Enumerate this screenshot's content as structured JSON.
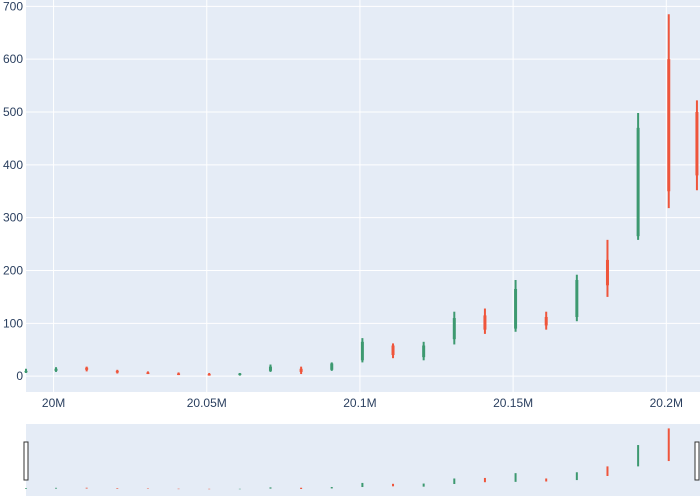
{
  "chart_data": {
    "type": "candlestick",
    "title": "",
    "xlabel": "",
    "ylabel": "",
    "xlim": [
      19991000,
      20211000
    ],
    "ylim": [
      -30,
      712
    ],
    "x_ticks": [
      {
        "value": 20000000,
        "label": "20M"
      },
      {
        "value": 20050000,
        "label": "20.05M"
      },
      {
        "value": 20100000,
        "label": "20.1M"
      },
      {
        "value": 20150000,
        "label": "20.15M"
      },
      {
        "value": 20200000,
        "label": "20.2M"
      }
    ],
    "y_ticks": [
      0,
      100,
      200,
      300,
      400,
      500,
      600,
      700
    ],
    "grid": true,
    "increasing_color": "#3d9970",
    "decreasing_color": "#ef553b",
    "plot_background": "#e5ecf6",
    "range_slider": true,
    "candles": [
      {
        "x": 19991000,
        "open": 8,
        "high": 14,
        "low": 6,
        "close": 10
      },
      {
        "x": 20000800,
        "open": 10,
        "high": 17,
        "low": 8,
        "close": 14
      },
      {
        "x": 20010800,
        "open": 16,
        "high": 18,
        "low": 9,
        "close": 12
      },
      {
        "x": 20020800,
        "open": 10,
        "high": 12,
        "low": 5,
        "close": 7
      },
      {
        "x": 20030800,
        "open": 7,
        "high": 9,
        "low": 4,
        "close": 5
      },
      {
        "x": 20040800,
        "open": 5,
        "high": 7,
        "low": 2,
        "close": 4
      },
      {
        "x": 20050800,
        "open": 4,
        "high": 6,
        "low": 1,
        "close": 3
      },
      {
        "x": 20060800,
        "open": 3,
        "high": 6,
        "low": 1,
        "close": 5
      },
      {
        "x": 20070800,
        "open": 10,
        "high": 22,
        "low": 8,
        "close": 18
      },
      {
        "x": 20080800,
        "open": 14,
        "high": 18,
        "low": 4,
        "close": 8
      },
      {
        "x": 20090800,
        "open": 12,
        "high": 26,
        "low": 10,
        "close": 24
      },
      {
        "x": 20100800,
        "open": 30,
        "high": 72,
        "low": 26,
        "close": 65
      },
      {
        "x": 20110800,
        "open": 58,
        "high": 62,
        "low": 34,
        "close": 40
      },
      {
        "x": 20120800,
        "open": 36,
        "high": 65,
        "low": 30,
        "close": 58
      },
      {
        "x": 20130800,
        "open": 70,
        "high": 122,
        "low": 60,
        "close": 110
      },
      {
        "x": 20140800,
        "open": 115,
        "high": 128,
        "low": 80,
        "close": 88
      },
      {
        "x": 20150800,
        "open": 90,
        "high": 182,
        "low": 84,
        "close": 165
      },
      {
        "x": 20160800,
        "open": 112,
        "high": 122,
        "low": 88,
        "close": 96
      },
      {
        "x": 20170800,
        "open": 112,
        "high": 192,
        "low": 104,
        "close": 182
      },
      {
        "x": 20180800,
        "open": 220,
        "high": 258,
        "low": 150,
        "close": 172
      },
      {
        "x": 20190800,
        "open": 265,
        "high": 498,
        "low": 258,
        "close": 470
      },
      {
        "x": 20200800,
        "open": 600,
        "high": 685,
        "low": 318,
        "close": 350
      },
      {
        "x": 20210000,
        "open": 500,
        "high": 522,
        "low": 352,
        "close": 380
      }
    ]
  }
}
